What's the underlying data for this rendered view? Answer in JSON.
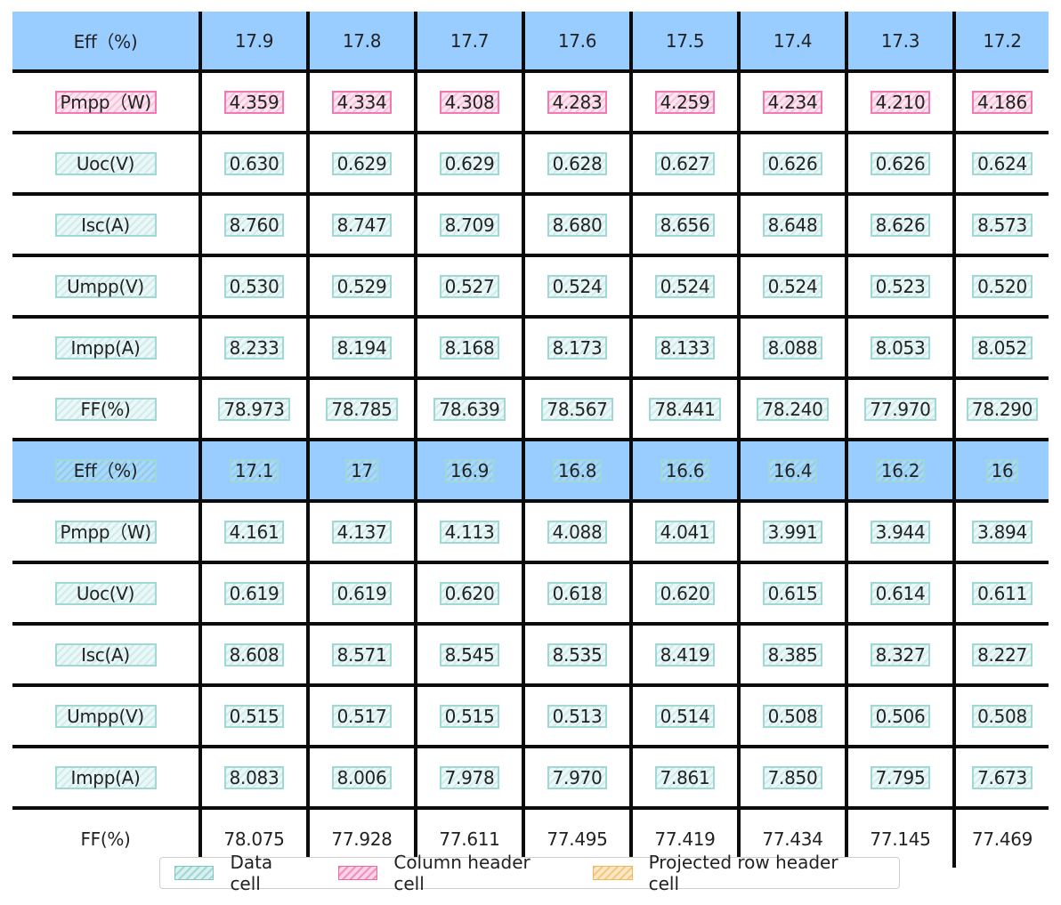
{
  "columns_count": 9,
  "rows": [
    {
      "label": "Eff（%)",
      "values": [
        "17.9",
        "17.8",
        "17.7",
        "17.6",
        "17.5",
        "17.4",
        "17.3",
        "17.2"
      ],
      "band": true,
      "label_ann": "none",
      "value_ann": "none"
    },
    {
      "label": "Pmpp（W)",
      "values": [
        "4.359",
        "4.334",
        "4.308",
        "4.283",
        "4.259",
        "4.234",
        "4.210",
        "4.186"
      ],
      "band": false,
      "label_ann": "colhdr",
      "value_ann": "colhdr"
    },
    {
      "label": "Uoc(V)",
      "values": [
        "0.630",
        "0.629",
        "0.629",
        "0.628",
        "0.627",
        "0.626",
        "0.626",
        "0.624"
      ],
      "band": false,
      "label_ann": "data",
      "value_ann": "data"
    },
    {
      "label": "Isc(A)",
      "values": [
        "8.760",
        "8.747",
        "8.709",
        "8.680",
        "8.656",
        "8.648",
        "8.626",
        "8.573"
      ],
      "band": false,
      "label_ann": "data",
      "value_ann": "data"
    },
    {
      "label": "Umpp(V)",
      "values": [
        "0.530",
        "0.529",
        "0.527",
        "0.524",
        "0.524",
        "0.524",
        "0.523",
        "0.520"
      ],
      "band": false,
      "label_ann": "data",
      "value_ann": "data"
    },
    {
      "label": "Impp(A)",
      "values": [
        "8.233",
        "8.194",
        "8.168",
        "8.173",
        "8.133",
        "8.088",
        "8.053",
        "8.052"
      ],
      "band": false,
      "label_ann": "data",
      "value_ann": "data"
    },
    {
      "label": "FF(%)",
      "values": [
        "78.973",
        "78.785",
        "78.639",
        "78.567",
        "78.441",
        "78.240",
        "77.970",
        "78.290"
      ],
      "band": false,
      "label_ann": "data",
      "value_ann": "data"
    },
    {
      "label": "Eff（%)",
      "values": [
        "17.1",
        "17",
        "16.9",
        "16.8",
        "16.6",
        "16.4",
        "16.2",
        "16"
      ],
      "band": true,
      "label_ann": "data",
      "value_ann": "data"
    },
    {
      "label": "Pmpp（W)",
      "values": [
        "4.161",
        "4.137",
        "4.113",
        "4.088",
        "4.041",
        "3.991",
        "3.944",
        "3.894"
      ],
      "band": false,
      "label_ann": "data",
      "value_ann": "data"
    },
    {
      "label": "Uoc(V)",
      "values": [
        "0.619",
        "0.619",
        "0.620",
        "0.618",
        "0.620",
        "0.615",
        "0.614",
        "0.611"
      ],
      "band": false,
      "label_ann": "data",
      "value_ann": "data"
    },
    {
      "label": "Isc(A)",
      "values": [
        "8.608",
        "8.571",
        "8.545",
        "8.535",
        "8.419",
        "8.385",
        "8.327",
        "8.227"
      ],
      "band": false,
      "label_ann": "data",
      "value_ann": "data"
    },
    {
      "label": "Umpp(V)",
      "values": [
        "0.515",
        "0.517",
        "0.515",
        "0.513",
        "0.514",
        "0.508",
        "0.506",
        "0.508"
      ],
      "band": false,
      "label_ann": "data",
      "value_ann": "data"
    },
    {
      "label": "Impp(A)",
      "values": [
        "8.083",
        "8.006",
        "7.978",
        "7.970",
        "7.861",
        "7.850",
        "7.795",
        "7.673"
      ],
      "band": false,
      "label_ann": "data",
      "value_ann": "data"
    },
    {
      "label": "FF(%)",
      "values": [
        "78.075",
        "77.928",
        "77.611",
        "77.495",
        "77.419",
        "77.434",
        "77.145",
        "77.469"
      ],
      "band": false,
      "label_ann": "none",
      "value_ann": "none"
    }
  ],
  "legend": [
    {
      "key": "data",
      "label": "Data cell"
    },
    {
      "key": "colhdr",
      "label": "Column header cell"
    },
    {
      "key": "rowhdr",
      "label": "Projected row header cell"
    }
  ],
  "colors": {
    "band": "#99ccff",
    "data_cell": "#9fd8d4",
    "column_header_cell": "#f291c0",
    "projected_row_header_cell": "#f6c77e",
    "grid_line": "#0b0b0b"
  }
}
